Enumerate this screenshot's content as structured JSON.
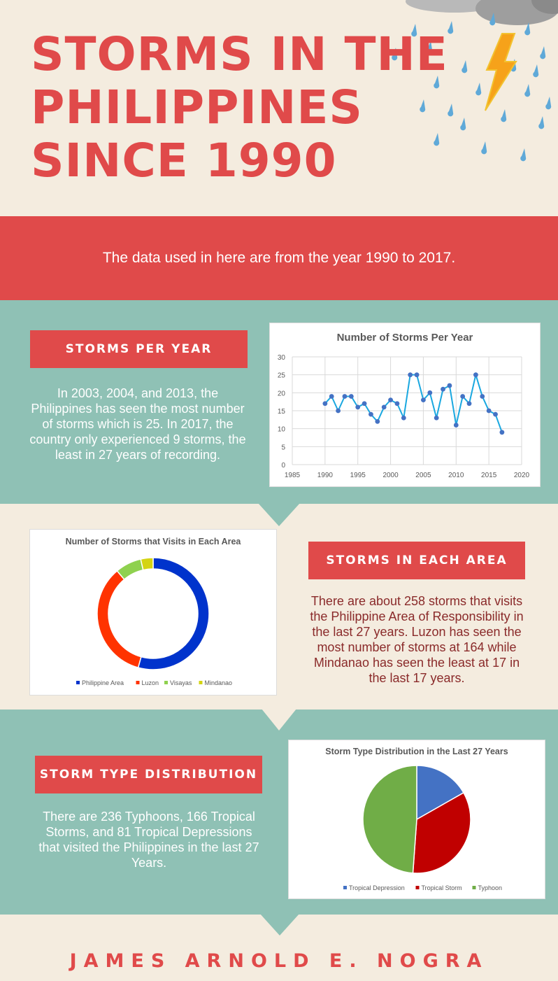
{
  "title": "STORMS IN THE PHILIPPINES SINCE 1990",
  "intro": "The data used in here are from the year 1990 to 2017.",
  "sections": {
    "per_year": {
      "label": "STORMS PER YEAR",
      "text": "In 2003, 2004, and 2013, the Philippines has seen the most number of storms which is 25. In 2017, the country only experienced 9 storms, the least in 27 years of recording."
    },
    "each_area": {
      "label": "STORMS IN EACH AREA",
      "text": "There are about 258 storms that visits the Philippine Area of Responsibility in the last 27 years. Luzon has seen the most number of storms at 164 while Mindanao has seen the least at 17 in the last 17 years."
    },
    "type_dist": {
      "label": "STORM TYPE DISTRIBUTION",
      "text": "There are 236 Typhoons, 166 Tropical Storms, and 81 Tropical Depressions that visited the Philippines in the last 27 Years."
    }
  },
  "author": "JAMES ARNOLD E. NOGRA",
  "colors": {
    "accent": "#e04a4a",
    "teal": "#8fc1b5",
    "cream": "#f4ecdf",
    "line": "#1aa8e0",
    "marker": "#4472c4"
  },
  "chart_data": [
    {
      "type": "line",
      "title": "Number of Storms Per Year",
      "x": [
        1990,
        1991,
        1992,
        1993,
        1994,
        1995,
        1996,
        1997,
        1998,
        1999,
        2000,
        2001,
        2002,
        2003,
        2004,
        2005,
        2006,
        2007,
        2008,
        2009,
        2010,
        2011,
        2012,
        2013,
        2014,
        2015,
        2016,
        2017
      ],
      "y": [
        17,
        19,
        15,
        19,
        19,
        16,
        17,
        14,
        12,
        16,
        18,
        17,
        13,
        25,
        25,
        18,
        20,
        13,
        21,
        22,
        11,
        19,
        17,
        25,
        19,
        15,
        14,
        9
      ],
      "xlim": [
        1985,
        2020
      ],
      "ylim": [
        0,
        30
      ],
      "xticks": [
        1985,
        1990,
        1995,
        2000,
        2005,
        2010,
        2015,
        2020
      ],
      "yticks": [
        0,
        5,
        10,
        15,
        20,
        25,
        30
      ],
      "grid": true
    },
    {
      "type": "pie",
      "title": "Number of Storms that Visits in Each Area",
      "categories": [
        "Philippine Area",
        "Luzon",
        "Visayas",
        "Mindanao"
      ],
      "values": [
        258,
        164,
        36,
        17
      ],
      "colors": [
        "#0033cc",
        "#ff3300",
        "#8fd14f",
        "#d4d414"
      ],
      "donut": true,
      "legend": "bottom"
    },
    {
      "type": "pie",
      "title": "Storm Type Distribution in the Last 27 Years",
      "categories": [
        "Tropical Depression",
        "Tropical Storm",
        "Typhoon"
      ],
      "values": [
        81,
        166,
        236
      ],
      "colors": [
        "#4472c4",
        "#c00000",
        "#70ad47"
      ],
      "legend": "bottom"
    }
  ]
}
